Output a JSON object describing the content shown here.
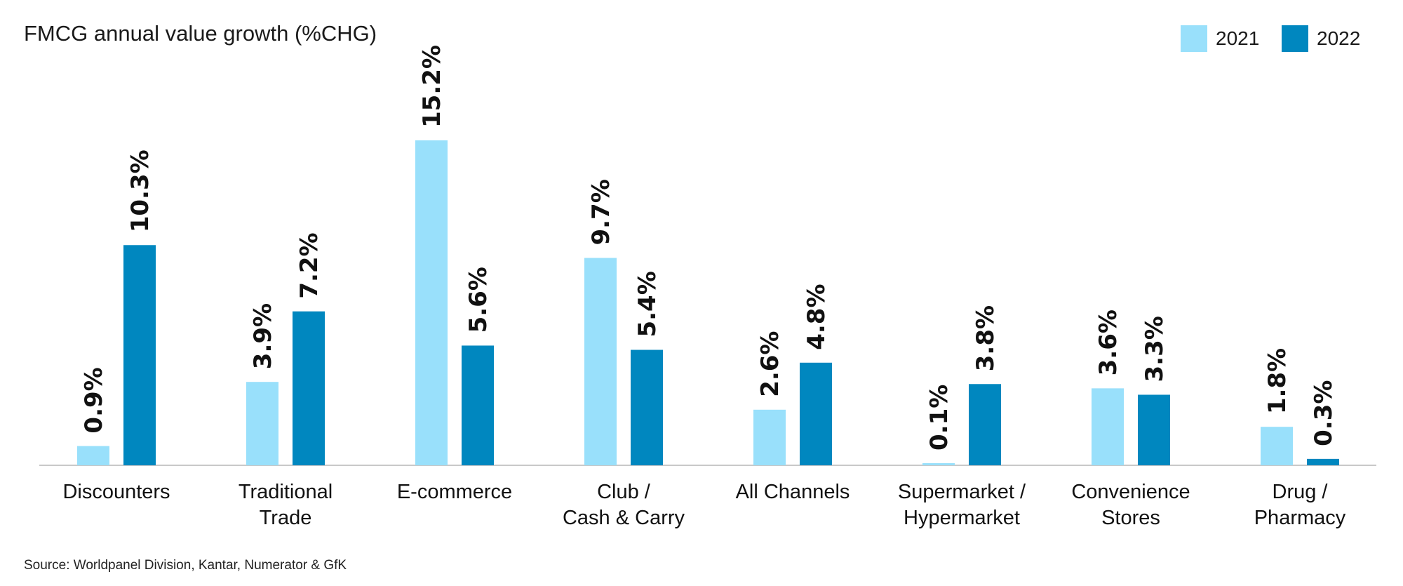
{
  "title": "FMCG annual value growth (%CHG)",
  "source": "Source: Worldpanel Division, Kantar, Numerator & GfK",
  "colors": {
    "series_2021": "#99e0fb",
    "series_2022": "#0087bf",
    "axis": "#c8c8c8"
  },
  "chart_data": {
    "type": "bar",
    "title": "FMCG annual value growth (%CHG)",
    "xlabel": "",
    "ylabel": "",
    "ylim": [
      0,
      15.2
    ],
    "grid": false,
    "legend_position": "top-right",
    "categories": [
      [
        "Discounters"
      ],
      [
        "Traditional",
        "Trade"
      ],
      [
        "E-commerce"
      ],
      [
        "Club /",
        "Cash & Carry"
      ],
      [
        "All Channels"
      ],
      [
        "Supermarket /",
        "Hypermarket"
      ],
      [
        "Convenience",
        "Stores"
      ],
      [
        "Drug /",
        "Pharmacy"
      ]
    ],
    "series": [
      {
        "name": "2021",
        "values": [
          0.9,
          3.9,
          15.2,
          9.7,
          2.6,
          0.1,
          3.6,
          1.8
        ],
        "labels": [
          "0.9%",
          "3.9%",
          "15.2%",
          "9.7%",
          "2.6%",
          "0.1%",
          "3.6%",
          "1.8%"
        ]
      },
      {
        "name": "2022",
        "values": [
          10.3,
          7.2,
          5.6,
          5.4,
          4.8,
          3.8,
          3.3,
          0.3
        ],
        "labels": [
          "10.3%",
          "7.2%",
          "5.6%",
          "5.4%",
          "4.8%",
          "3.8%",
          "3.3%",
          "0.3%"
        ]
      }
    ]
  }
}
